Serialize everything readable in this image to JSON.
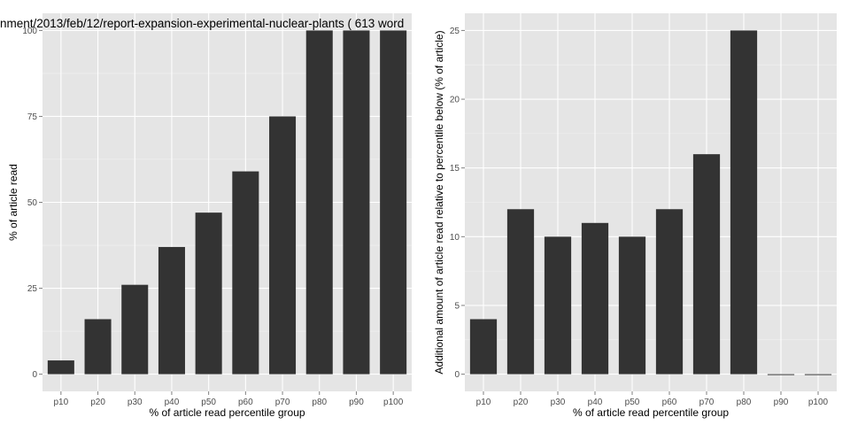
{
  "chart_data": [
    {
      "type": "bar",
      "title": "nment/2013/feb/12/report-expansion-experimental-nuclear-plants ( 613 word",
      "categories": [
        "p10",
        "p20",
        "p30",
        "p40",
        "p50",
        "p60",
        "p70",
        "p80",
        "p90",
        "p100"
      ],
      "values": [
        4,
        16,
        26,
        37,
        47,
        59,
        75,
        100,
        100,
        100
      ],
      "yticks": [
        "0",
        "25",
        "50",
        "75",
        "100"
      ],
      "xlabel": "% of article read percentile group",
      "ylabel": "% of article read",
      "ylim": [
        -5,
        105
      ],
      "grid": true,
      "bar_color": "#333333",
      "panel_color": "#e5e5e5"
    },
    {
      "type": "bar",
      "title": "",
      "categories": [
        "p10",
        "p20",
        "p30",
        "p40",
        "p50",
        "p60",
        "p70",
        "p80",
        "p90",
        "p100"
      ],
      "values": [
        4,
        12,
        10,
        11,
        10,
        12,
        16,
        25,
        0,
        0
      ],
      "yticks": [
        "0",
        "5",
        "10",
        "15",
        "20",
        "25"
      ],
      "xlabel": "% of article read percentile group",
      "ylabel": "Additional amount of article read relative to percentile below (% of article)",
      "ylim": [
        -1.25,
        26.25
      ],
      "grid": true,
      "bar_color": "#333333",
      "panel_color": "#e5e5e5"
    }
  ]
}
